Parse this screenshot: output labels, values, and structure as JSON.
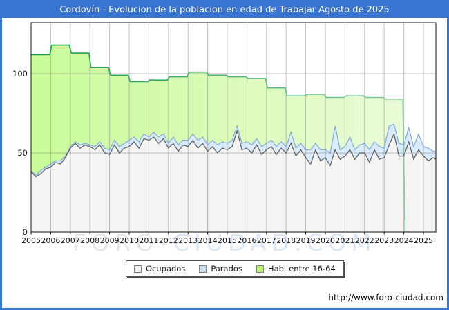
{
  "title_bar": {
    "text": "Cordovín - Evolucion de la poblacion en edad de Trabajar Agosto de 2025"
  },
  "footer": {
    "url": "http://www.foro-ciudad.com"
  },
  "watermark": {
    "left": "FORO-",
    "right": "CIUDAD.COM"
  },
  "legend": {
    "items": [
      {
        "label": "Ocupados",
        "color": "#f0f0ee"
      },
      {
        "label": "Parados",
        "color": "#cadef2"
      },
      {
        "label": "Hab. entre 16-64",
        "color": "#c1f07c"
      }
    ]
  },
  "colors": {
    "frame_blue": "#3875d2",
    "habitantes_fill_left": "#c9fb97",
    "habitantes_fill_right": "#eafbd8",
    "habitantes_line_left": "#0aa047",
    "habitantes_line_right": "#85c8a5",
    "parados_fill": "#d9ebfc",
    "parados_line": "#7fa8d9",
    "ocupados_fill": "#f4f4f2",
    "ocupados_line": "#58585a",
    "grid": "rgba(130,130,130,0.5)",
    "axis": "#111111",
    "watermark_gray": "#e6e6e6",
    "watermark_blue": "#dbe7f7"
  },
  "chart_data": {
    "type": "area",
    "title": "Cordovín - Evolucion de la poblacion en edad de Trabajar Agosto de 2025",
    "xlabel": "",
    "ylabel": "",
    "x_tick_years": [
      2005,
      2006,
      2007,
      2008,
      2009,
      2010,
      2011,
      2012,
      2013,
      2014,
      2015,
      2016,
      2017,
      2018,
      2019,
      2020,
      2021,
      2022,
      2023,
      2024,
      2025
    ],
    "x_end": 2025.67,
    "ylim": [
      0,
      132
    ],
    "yticks": [
      0,
      50,
      100
    ],
    "grid": true,
    "legend_position": "bottom",
    "series": [
      {
        "name": "Hab. entre 16-64",
        "kind": "annual_step",
        "years": [
          2005,
          2006,
          2007,
          2008,
          2009,
          2010,
          2011,
          2012,
          2013,
          2014,
          2015,
          2016,
          2017,
          2018,
          2019,
          2020,
          2021,
          2022,
          2023
        ],
        "values": [
          112,
          118,
          113,
          104,
          99,
          95,
          96,
          98,
          101,
          99,
          98,
          97,
          91,
          86,
          87,
          85,
          86,
          85,
          84
        ],
        "data_ends": 2024.0
      },
      {
        "name": "Ocupados",
        "kind": "quarterly",
        "t_start": 2005.0,
        "t_step": 0.25,
        "values": [
          38,
          35,
          37,
          40,
          41,
          44,
          43,
          47,
          53,
          56,
          53,
          55,
          54,
          52,
          55,
          50,
          49,
          55,
          50,
          53,
          54,
          57,
          53,
          59,
          58,
          60,
          56,
          59,
          53,
          56,
          51,
          55,
          54,
          58,
          53,
          56,
          51,
          54,
          50,
          53,
          52,
          54,
          64,
          52,
          53,
          50,
          55,
          49,
          52,
          54,
          49,
          53,
          50,
          56,
          48,
          52,
          47,
          43,
          52,
          45,
          47,
          42,
          52,
          46,
          48,
          52,
          46,
          50,
          50,
          44,
          52,
          46,
          47,
          55,
          62,
          48,
          48,
          57,
          46,
          52,
          48,
          45,
          47,
          46
        ]
      },
      {
        "name": "Parados",
        "kind": "quarterly",
        "stacked_on": "Ocupados",
        "t_start": 2005.0,
        "t_step": 0.25,
        "values": [
          1,
          1,
          2,
          1,
          2,
          1,
          2,
          1,
          1,
          1,
          2,
          1,
          1,
          2,
          2,
          3,
          3,
          3,
          4,
          3,
          4,
          3,
          4,
          3,
          2,
          3,
          4,
          3,
          3,
          4,
          4,
          3,
          4,
          4,
          5,
          4,
          4,
          4,
          5,
          4,
          4,
          4,
          3,
          4,
          4,
          5,
          4,
          5,
          4,
          4,
          5,
          4,
          4,
          7,
          5,
          4,
          5,
          9,
          4,
          7,
          5,
          8,
          15,
          6,
          6,
          8,
          6,
          5,
          6,
          8,
          5,
          8,
          6,
          12,
          6,
          8,
          7,
          9,
          8,
          10,
          6,
          8,
          4,
          5
        ]
      }
    ]
  }
}
